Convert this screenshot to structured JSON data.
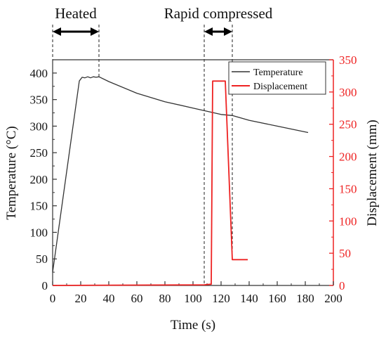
{
  "chart_data": {
    "type": "line",
    "xlabel": "Time (s)",
    "ylabel_left": "Temperature (°C)",
    "ylabel_right": "Displacement (mm)",
    "xlim": [
      0,
      200
    ],
    "ylim_left": [
      0,
      425
    ],
    "ylim_right": [
      0,
      350
    ],
    "x_ticks": [
      "0",
      "20",
      "40",
      "60",
      "80",
      "100",
      "120",
      "140",
      "160",
      "180",
      "200"
    ],
    "y_ticks_left": [
      "0",
      "50",
      "100",
      "150",
      "200",
      "250",
      "300",
      "350",
      "400"
    ],
    "y_ticks_right": [
      "0",
      "50",
      "100",
      "150",
      "200",
      "250",
      "300",
      "350"
    ],
    "grid": false,
    "legend_position": "top-right",
    "series": [
      {
        "name": "Temperature",
        "axis": "left",
        "color": "#333333",
        "points": [
          [
            0,
            25
          ],
          [
            19,
            385
          ],
          [
            21,
            392
          ],
          [
            23,
            391
          ],
          [
            25,
            393
          ],
          [
            27,
            391
          ],
          [
            29,
            393
          ],
          [
            31,
            392
          ],
          [
            33,
            393
          ],
          [
            40,
            384
          ],
          [
            60,
            362
          ],
          [
            80,
            346
          ],
          [
            100,
            334
          ],
          [
            110,
            328
          ],
          [
            120,
            322
          ],
          [
            128,
            320
          ],
          [
            140,
            311
          ],
          [
            160,
            300
          ],
          [
            182,
            288
          ]
        ]
      },
      {
        "name": "Displacement",
        "axis": "right",
        "color": "#ee2222",
        "points": [
          [
            0,
            0
          ],
          [
            108,
            1
          ],
          [
            113,
            2
          ],
          [
            114,
            317
          ],
          [
            123,
            317
          ],
          [
            128,
            40
          ],
          [
            139,
            40
          ]
        ]
      }
    ],
    "annotations": [
      {
        "label": "Heated",
        "x_start": 0,
        "x_end": 33
      },
      {
        "label": "Rapid compressed",
        "x_start": 108,
        "x_end": 128
      }
    ]
  }
}
